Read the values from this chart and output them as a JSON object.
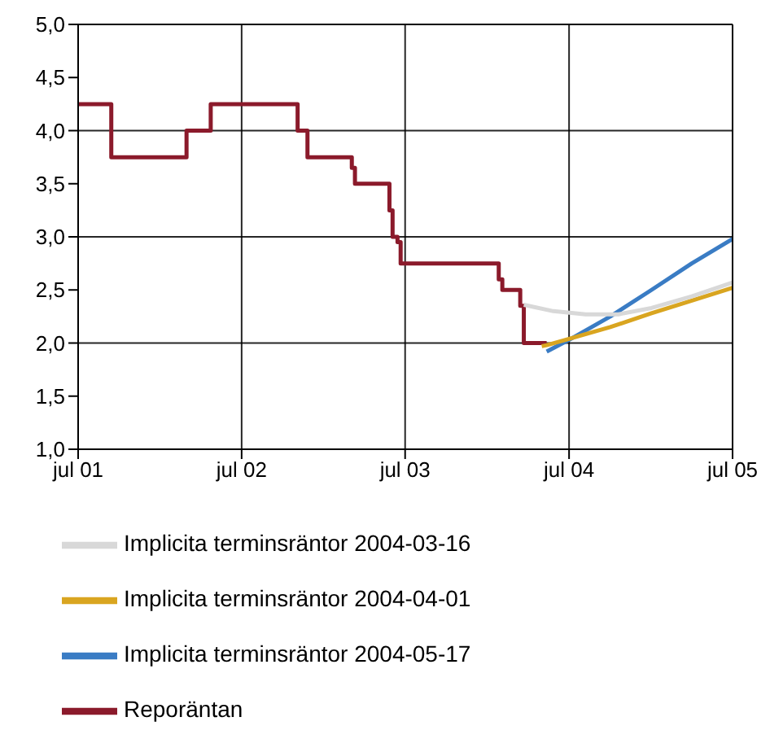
{
  "chart_data": {
    "type": "line",
    "xlim": [
      "2001-07",
      "2005-07"
    ],
    "ylim": [
      1,
      5
    ],
    "xticks": [
      {
        "value": "2001-07",
        "label": "jul 01"
      },
      {
        "value": "2002-07",
        "label": "jul 02"
      },
      {
        "value": "2003-07",
        "label": "jul 03"
      },
      {
        "value": "2004-07",
        "label": "jul 04"
      },
      {
        "value": "2005-07",
        "label": "jul 05"
      }
    ],
    "yticks": [
      {
        "value": 1,
        "label": "1,0"
      },
      {
        "value": 1.5,
        "label": "1,5"
      },
      {
        "value": 2,
        "label": "2,0"
      },
      {
        "value": 2.5,
        "label": "2,5"
      },
      {
        "value": 3,
        "label": "3,0"
      },
      {
        "value": 3.5,
        "label": "3,5"
      },
      {
        "value": 4,
        "label": "4,0"
      },
      {
        "value": 4.5,
        "label": "4,5"
      },
      {
        "value": 5,
        "label": "5,0"
      }
    ],
    "grid": true,
    "legend": "bottom",
    "marker": "none",
    "line_style": "solid",
    "series": [
      {
        "name": "Reporäntan",
        "type": "step",
        "color": "#8b1a2b",
        "x": [
          "2001-07-01",
          "2001-09-13",
          "2002-02-28",
          "2002-04-23",
          "2002-11-03",
          "2002-11-25",
          "2003-03-04",
          "2003-03-11",
          "2003-05-27",
          "2003-06-03",
          "2003-06-14",
          "2003-06-21",
          "2004-01-26",
          "2004-02-03",
          "2004-03-14",
          "2004-03-22",
          "2004-05-12"
        ],
        "values": [
          4.25,
          3.75,
          4.0,
          4.25,
          4.0,
          3.75,
          3.65,
          3.5,
          3.25,
          3.0,
          2.95,
          2.75,
          2.6,
          2.5,
          2.35,
          2.0,
          2.0
        ]
      },
      {
        "name": "Implicita terminsräntor 2004-05-17",
        "color": "#3a7cc4",
        "x": [
          "2004-05-12",
          "2004-07-01",
          "2004-10-01",
          "2005-01-01",
          "2005-04-01",
          "2005-07-01"
        ],
        "values": [
          1.92,
          2.03,
          2.25,
          2.5,
          2.75,
          2.98
        ]
      },
      {
        "name": "Implicita terminsräntor 2004-04-01",
        "color": "#d9a520",
        "x": [
          "2004-05-01",
          "2004-05-12",
          "2004-07-01",
          "2004-10-01",
          "2005-01-01",
          "2005-04-01",
          "2005-07-01"
        ],
        "values": [
          1.97,
          1.98,
          2.04,
          2.15,
          2.28,
          2.4,
          2.52
        ]
      },
      {
        "name": "Implicita terminsräntor 2004-03-16",
        "color": "#d8d8d8",
        "x": [
          "2004-03-22",
          "2004-05-27",
          "2004-08-07",
          "2004-10-19",
          "2005-01-01",
          "2005-04-01",
          "2005-07-01"
        ],
        "values": [
          2.36,
          2.3,
          2.27,
          2.27,
          2.33,
          2.44,
          2.57
        ]
      }
    ]
  }
}
